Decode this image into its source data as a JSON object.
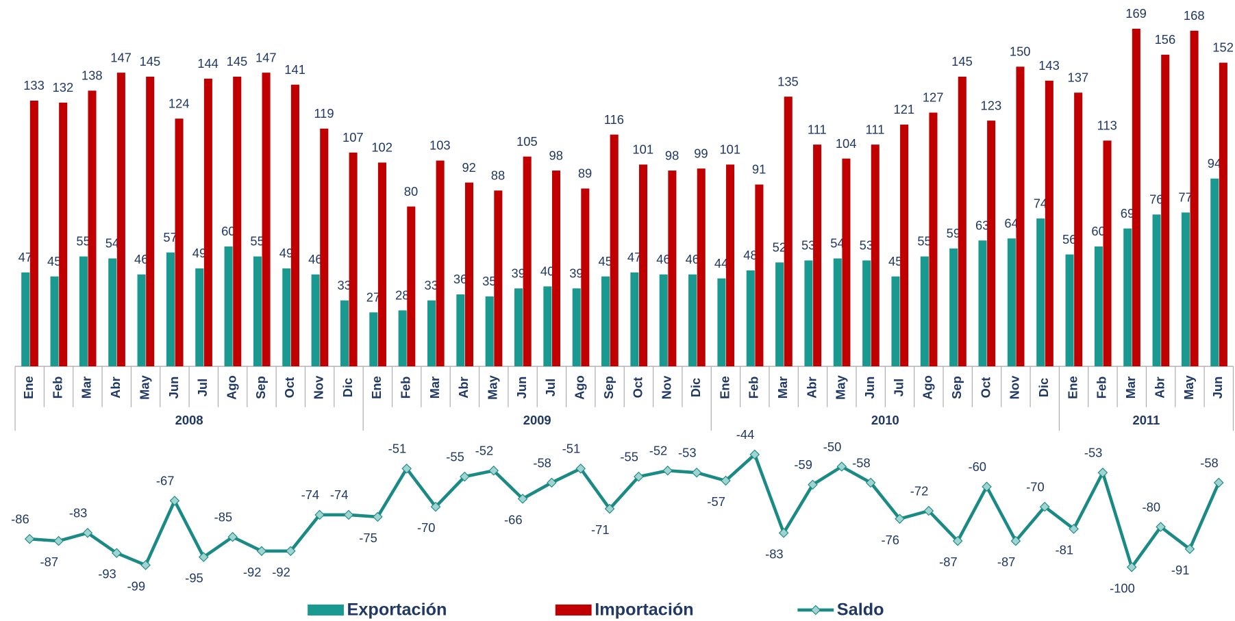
{
  "chart_data": {
    "type": "bar-line",
    "categories": [
      "Ene",
      "Feb",
      "Mar",
      "Abr",
      "May",
      "Jun",
      "Jul",
      "Ago",
      "Sep",
      "Oct",
      "Nov",
      "Dic",
      "Ene",
      "Feb",
      "Mar",
      "Abr",
      "May",
      "Jun",
      "Jul",
      "Ago",
      "Sep",
      "Oct",
      "Nov",
      "Dic",
      "Ene",
      "Feb",
      "Mar",
      "Abr",
      "May",
      "Jun",
      "Jul",
      "Ago",
      "Sep",
      "Oct",
      "Nov",
      "Dic",
      "Ene",
      "Feb",
      "Mar",
      "Abr",
      "May",
      "Jun"
    ],
    "years": [
      "2008",
      "2009",
      "2010",
      "2011"
    ],
    "series": [
      {
        "name": "Exportación",
        "color": "#1a9990",
        "values": [
          47,
          45,
          55,
          54,
          46,
          57,
          49,
          60,
          55,
          49,
          46,
          33,
          27,
          28,
          33,
          36,
          35,
          39,
          40,
          39,
          45,
          47,
          46,
          46,
          44,
          48,
          52,
          53,
          54,
          53,
          45,
          55,
          59,
          63,
          64,
          74,
          56,
          60,
          69,
          76,
          77,
          94
        ]
      },
      {
        "name": "Importación",
        "color": "#c00000",
        "values": [
          133,
          132,
          138,
          147,
          145,
          124,
          144,
          145,
          147,
          141,
          119,
          107,
          102,
          80,
          103,
          92,
          88,
          105,
          98,
          89,
          116,
          101,
          98,
          99,
          101,
          91,
          135,
          111,
          104,
          111,
          121,
          127,
          145,
          123,
          150,
          143,
          137,
          113,
          169,
          156,
          168,
          152
        ]
      },
      {
        "name": "Saldo",
        "color": "#1a8a85",
        "axis": "y2",
        "values": [
          -86,
          -87,
          -83,
          -93,
          -99,
          -67,
          -95,
          -85,
          -92,
          -92,
          -74,
          -74,
          -75,
          -51,
          -70,
          -55,
          -52,
          -66,
          -58,
          -51,
          -71,
          -55,
          -52,
          -53,
          -57,
          -44,
          -83,
          -59,
          -50,
          -58,
          -76,
          -72,
          -87,
          -60,
          -87,
          -70,
          -81,
          -53,
          -100,
          -80,
          -91,
          -58
        ]
      }
    ],
    "ylim": [
      0,
      170
    ],
    "y2lim": [
      -110,
      -40
    ]
  }
}
